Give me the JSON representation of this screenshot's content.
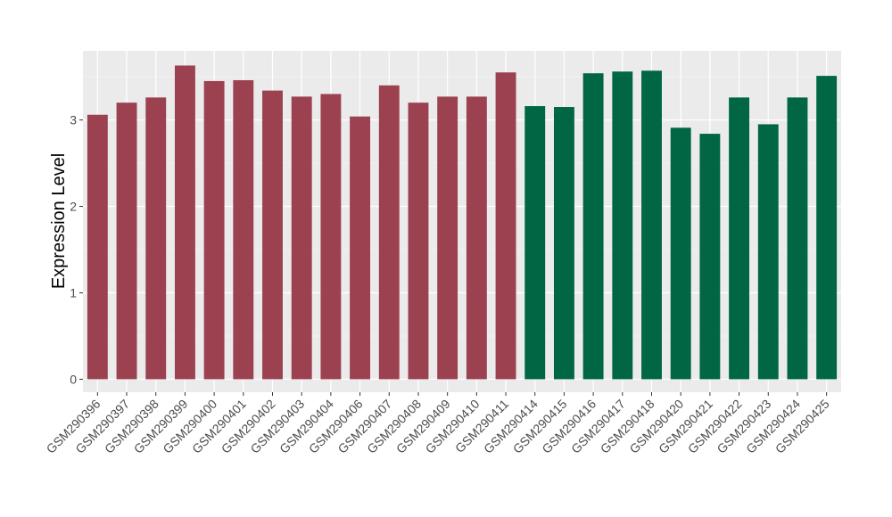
{
  "chart_data": {
    "type": "bar",
    "ylabel": "Expression Level",
    "xlabel": "",
    "ylim": [
      -0.15,
      3.8
    ],
    "yticks": [
      0,
      1,
      2,
      3
    ],
    "grid": true,
    "legend": "none",
    "background_color": "#ebebeb",
    "categories": [
      "GSM290396",
      "GSM290397",
      "GSM290398",
      "GSM290399",
      "GSM290400",
      "GSM290401",
      "GSM290402",
      "GSM290403",
      "GSM290404",
      "GSM290406",
      "GSM290407",
      "GSM290408",
      "GSM290409",
      "GSM290410",
      "GSM290411",
      "GSM290414",
      "GSM290415",
      "GSM290416",
      "GSM290417",
      "GSM290418",
      "GSM290420",
      "GSM290421",
      "GSM290422",
      "GSM290423",
      "GSM290424",
      "GSM290425"
    ],
    "values": [
      3.06,
      3.2,
      3.26,
      3.63,
      3.45,
      3.46,
      3.34,
      3.27,
      3.3,
      3.04,
      3.4,
      3.2,
      3.27,
      3.27,
      3.55,
      3.16,
      3.15,
      3.54,
      3.56,
      3.57,
      2.91,
      2.84,
      3.26,
      2.95,
      3.26,
      3.51
    ],
    "groups": [
      1,
      1,
      1,
      1,
      1,
      1,
      1,
      1,
      1,
      1,
      1,
      1,
      1,
      1,
      1,
      2,
      2,
      2,
      2,
      2,
      2,
      2,
      2,
      2,
      2,
      2
    ],
    "group_colors": {
      "1": "#9b4150",
      "2": "#006644"
    }
  }
}
